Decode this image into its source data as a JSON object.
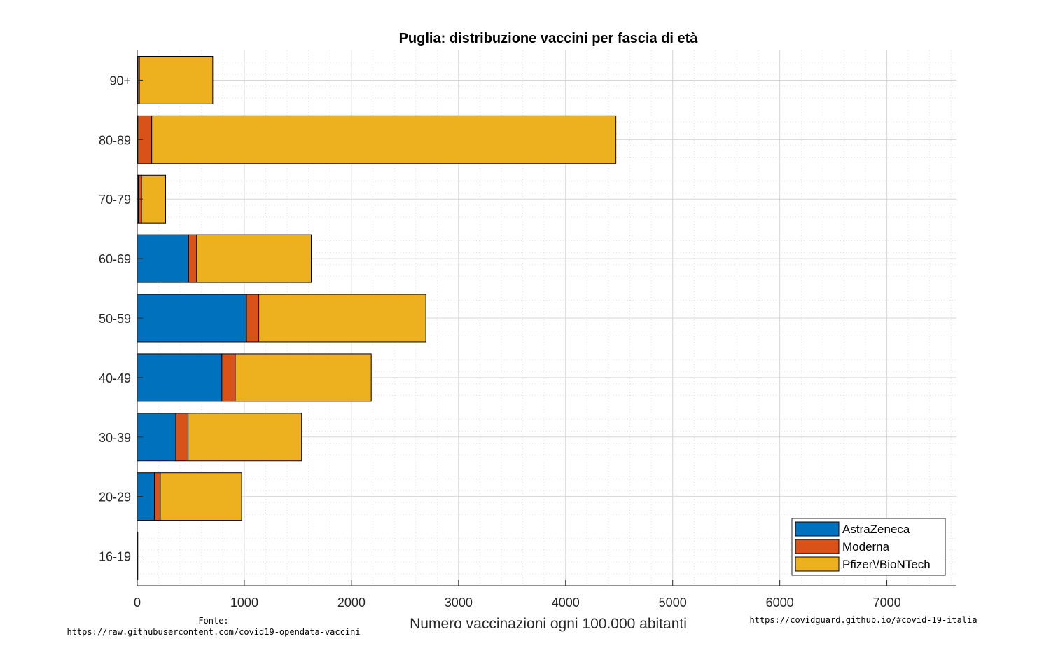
{
  "chart_data": {
    "type": "bar",
    "orientation": "horizontal",
    "stacked": true,
    "title": "Puglia: distribuzione vaccini per fascia di età",
    "xlabel": "Numero vaccinazioni ogni 100.000 abitanti",
    "ylabel": "",
    "xlim": [
      0,
      7650
    ],
    "xticks": [
      0,
      1000,
      2000,
      3000,
      4000,
      5000,
      6000,
      7000
    ],
    "grid": true,
    "minor_grid": true,
    "legend_position": "bottom-right",
    "categories": [
      "16-19",
      "20-29",
      "30-39",
      "40-49",
      "50-59",
      "60-69",
      "70-79",
      "80-89",
      "90+"
    ],
    "series": [
      {
        "name": "AstraZeneca",
        "color": "#0072BD",
        "values": [
          5,
          160,
          360,
          790,
          1020,
          480,
          10,
          5,
          5
        ]
      },
      {
        "name": "Moderna",
        "color": "#D95319",
        "values": [
          0,
          55,
          115,
          125,
          115,
          75,
          30,
          130,
          15
        ]
      },
      {
        "name": "Pfizer\\/BioNTech",
        "color": "#EDB120",
        "values": [
          0,
          760,
          1060,
          1270,
          1560,
          1070,
          225,
          4335,
          685
        ]
      }
    ]
  },
  "footer": {
    "source_label": "Fonte:",
    "source_url": "https://raw.githubusercontent.com/covid19-opendata-vaccini",
    "site_url": "https://covidguard.github.io/#covid-19-italia"
  }
}
